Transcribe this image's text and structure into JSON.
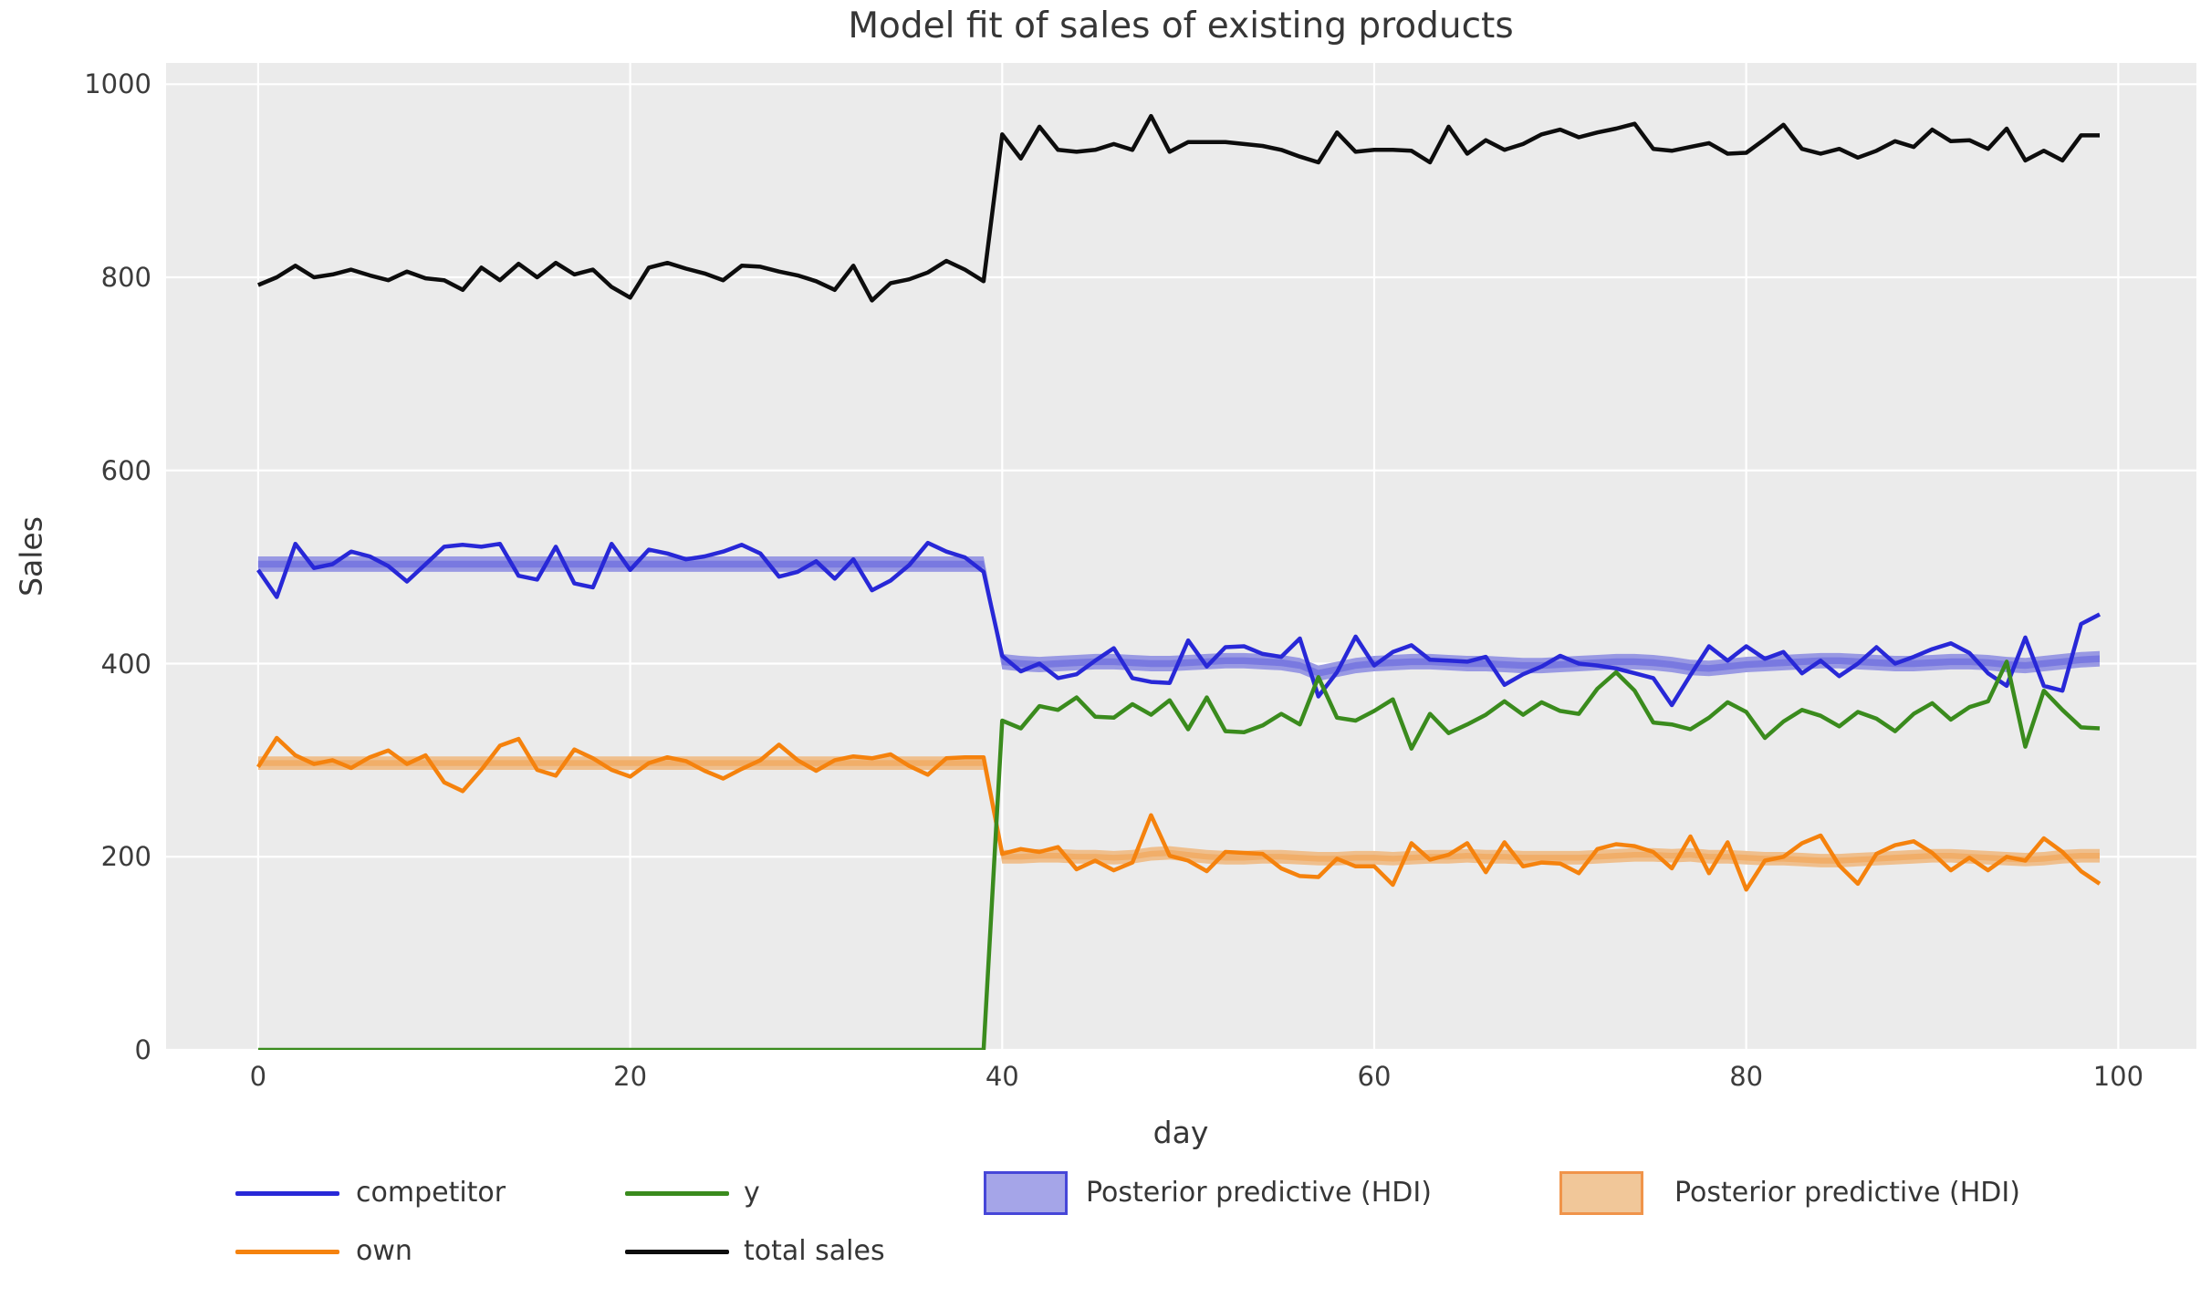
{
  "title": "Model fit of sales of existing products",
  "xlabel": "day",
  "ylabel": "Sales",
  "colors": {
    "figure_bg": "#ffffff",
    "plot_bg": "#ebebeb",
    "grid": "#ffffff",
    "text": "#363636",
    "tick_text": "#3c3c3c",
    "competitor": "#2828d7",
    "own": "#f5820d",
    "y_series": "#3a8b1d",
    "total": "#0d0d0d",
    "blue_band_outer": "#9999e3",
    "blue_band_inner": "#7979e0",
    "orange_band_outer": "#efbf8d",
    "orange_band_inner": "#f1ae69",
    "legend_blue_patch_fill": "#a5a5e8",
    "legend_blue_patch_border": "#4646d8",
    "legend_orange_patch_fill": "#f1c799",
    "legend_orange_patch_border": "#f0944a"
  },
  "legend": {
    "items": [
      {
        "type": "line",
        "color_key": "competitor",
        "label": "competitor",
        "col": 0,
        "row": 0
      },
      {
        "type": "line",
        "color_key": "own",
        "label": "own",
        "col": 0,
        "row": 1
      },
      {
        "type": "line",
        "color_key": "y_series",
        "label": "y",
        "col": 1,
        "row": 0
      },
      {
        "type": "line",
        "color_key": "total",
        "label": "total sales",
        "col": 1,
        "row": 1
      },
      {
        "type": "patch",
        "fill_key": "legend_blue_patch_fill",
        "border_key": "legend_blue_patch_border",
        "label": "Posterior predictive (HDI)",
        "col": 2,
        "row": 0
      },
      {
        "type": "patch",
        "fill_key": "legend_orange_patch_fill",
        "border_key": "legend_orange_patch_border",
        "label": "Posterior predictive (HDI)",
        "col": 3,
        "row": 0
      }
    ]
  },
  "chart_data": {
    "type": "line",
    "title": "Model fit of sales of existing products",
    "xlabel": "day",
    "ylabel": "Sales",
    "xlim": [
      -4.95,
      104.2
    ],
    "ylim": [
      0,
      1022
    ],
    "x_ticks": [
      0,
      20,
      40,
      60,
      80,
      100
    ],
    "y_ticks": [
      0,
      200,
      400,
      600,
      800,
      1000
    ],
    "grid": true,
    "legend_position": "bottom",
    "x": [
      0,
      1,
      2,
      3,
      4,
      5,
      6,
      7,
      8,
      9,
      10,
      11,
      12,
      13,
      14,
      15,
      16,
      17,
      18,
      19,
      20,
      21,
      22,
      23,
      24,
      25,
      26,
      27,
      28,
      29,
      30,
      31,
      32,
      33,
      34,
      35,
      36,
      37,
      38,
      39,
      40,
      41,
      42,
      43,
      44,
      45,
      46,
      47,
      48,
      49,
      50,
      51,
      52,
      53,
      54,
      55,
      56,
      57,
      58,
      59,
      60,
      61,
      62,
      63,
      64,
      65,
      66,
      67,
      68,
      69,
      70,
      71,
      72,
      73,
      74,
      75,
      76,
      77,
      78,
      79,
      80,
      81,
      82,
      83,
      84,
      85,
      86,
      87,
      88,
      89,
      90,
      91,
      92,
      93,
      94,
      95,
      96,
      97,
      98,
      99
    ],
    "series": [
      {
        "name": "competitor",
        "color_key": "competitor",
        "values": [
          497,
          469,
          524,
          499,
          503,
          516,
          511,
          501,
          485,
          503,
          521,
          523,
          521,
          524,
          491,
          487,
          521,
          483,
          479,
          524,
          497,
          518,
          514,
          508,
          511,
          516,
          523,
          514,
          490,
          495,
          506,
          488,
          508,
          476,
          486,
          502,
          525,
          516,
          510,
          495,
          408,
          392,
          400,
          385,
          389,
          403,
          416,
          385,
          381,
          380,
          424,
          397,
          417,
          418,
          410,
          407,
          426,
          366,
          391,
          428,
          398,
          412,
          419,
          404,
          403,
          402,
          407,
          378,
          389,
          397,
          408,
          400,
          398,
          395,
          390,
          385,
          357,
          388,
          418,
          403,
          418,
          405,
          412,
          390,
          403,
          387,
          400,
          417,
          400,
          407,
          415,
          421,
          411,
          390,
          377,
          427,
          377,
          372,
          441,
          451
        ]
      },
      {
        "name": "own",
        "color_key": "own",
        "values": [
          293,
          323,
          305,
          296,
          300,
          292,
          303,
          310,
          296,
          305,
          277,
          268,
          290,
          315,
          322,
          290,
          284,
          311,
          302,
          290,
          283,
          297,
          303,
          299,
          289,
          281,
          291,
          300,
          316,
          300,
          289,
          300,
          304,
          302,
          306,
          294,
          285,
          302,
          303,
          303,
          203,
          208,
          205,
          210,
          187,
          196,
          186,
          194,
          243,
          201,
          196,
          185,
          205,
          204,
          203,
          188,
          180,
          179,
          198,
          190,
          190,
          171,
          214,
          197,
          202,
          214,
          184,
          215,
          190,
          194,
          193,
          183,
          208,
          213,
          211,
          205,
          188,
          221,
          183,
          215,
          166,
          196,
          200,
          214,
          222,
          191,
          172,
          203,
          212,
          216,
          204,
          186,
          199,
          186,
          200,
          196,
          219,
          205,
          185,
          172
        ]
      },
      {
        "name": "y",
        "color_key": "y_series",
        "values": [
          0,
          0,
          0,
          0,
          0,
          0,
          0,
          0,
          0,
          0,
          0,
          0,
          0,
          0,
          0,
          0,
          0,
          0,
          0,
          0,
          0,
          0,
          0,
          0,
          0,
          0,
          0,
          0,
          0,
          0,
          0,
          0,
          0,
          0,
          0,
          0,
          0,
          0,
          0,
          0,
          341,
          333,
          356,
          352,
          365,
          345,
          344,
          358,
          347,
          362,
          332,
          365,
          330,
          329,
          336,
          348,
          337,
          386,
          344,
          341,
          351,
          363,
          312,
          348,
          328,
          337,
          347,
          361,
          347,
          360,
          351,
          348,
          374,
          391,
          372,
          339,
          337,
          332,
          344,
          360,
          350,
          323,
          340,
          352,
          346,
          335,
          350,
          343,
          330,
          348,
          359,
          342,
          355,
          361,
          402,
          314,
          372,
          352,
          334,
          333
        ]
      },
      {
        "name": "total sales",
        "color_key": "total",
        "values": [
          792,
          800,
          812,
          800,
          803,
          808,
          802,
          797,
          806,
          799,
          797,
          787,
          810,
          797,
          814,
          800,
          815,
          803,
          808,
          790,
          779,
          810,
          815,
          809,
          804,
          797,
          812,
          811,
          806,
          802,
          796,
          787,
          812,
          776,
          794,
          798,
          805,
          817,
          808,
          796,
          948,
          923,
          956,
          932,
          930,
          932,
          938,
          932,
          967,
          930,
          940,
          940,
          940,
          938,
          936,
          932,
          925,
          919,
          950,
          930,
          932,
          932,
          931,
          919,
          956,
          928,
          942,
          932,
          938,
          948,
          953,
          945,
          950,
          954,
          959,
          933,
          931,
          935,
          939,
          928,
          929,
          943,
          958,
          933,
          928,
          933,
          924,
          931,
          941,
          935,
          953,
          941,
          942,
          933,
          954,
          921,
          931,
          921,
          947,
          947
        ]
      }
    ],
    "bands": [
      {
        "name": "Posterior predictive (HDI)",
        "series": "competitor",
        "outer_color_key": "blue_band_outer",
        "inner_color_key": "blue_band_inner",
        "outer_halfwidth": 8,
        "inner_halfwidth": 3.5,
        "center": [
          503,
          503,
          503,
          503,
          503,
          503,
          503,
          503,
          503,
          503,
          503,
          503,
          503,
          503,
          503,
          503,
          503,
          503,
          503,
          503,
          503,
          503,
          503,
          503,
          503,
          503,
          503,
          503,
          503,
          503,
          503,
          503,
          503,
          503,
          503,
          503,
          503,
          503,
          503,
          503,
          402,
          400,
          399,
          400,
          401,
          402,
          402,
          401,
          400,
          400,
          401,
          402,
          403,
          403,
          402,
          401,
          398,
          390,
          394,
          398,
          400,
          401,
          402,
          402,
          401,
          400,
          400,
          399,
          398,
          398,
          399,
          400,
          401,
          402,
          402,
          401,
          399,
          396,
          395,
          397,
          399,
          400,
          401,
          402,
          403,
          403,
          402,
          401,
          400,
          400,
          401,
          402,
          402,
          401,
          399,
          398,
          400,
          402,
          404,
          405
        ]
      },
      {
        "name": "Posterior predictive (HDI)",
        "series": "own",
        "outer_color_key": "orange_band_outer",
        "inner_color_key": "orange_band_inner",
        "outer_halfwidth": 7,
        "inner_halfwidth": 3,
        "center": [
          297,
          297,
          297,
          297,
          297,
          297,
          297,
          297,
          297,
          297,
          297,
          297,
          297,
          297,
          297,
          297,
          297,
          297,
          297,
          297,
          297,
          297,
          297,
          297,
          297,
          297,
          297,
          297,
          297,
          297,
          297,
          297,
          297,
          297,
          297,
          297,
          297,
          297,
          297,
          297,
          200,
          200,
          201,
          201,
          200,
          200,
          199,
          200,
          203,
          204,
          202,
          200,
          199,
          199,
          200,
          200,
          199,
          198,
          198,
          199,
          199,
          198,
          199,
          200,
          200,
          201,
          200,
          200,
          199,
          199,
          199,
          199,
          200,
          201,
          202,
          202,
          201,
          202,
          200,
          200,
          199,
          198,
          198,
          197,
          196,
          196,
          197,
          198,
          199,
          200,
          201,
          201,
          200,
          199,
          198,
          197,
          198,
          200,
          201,
          201
        ]
      }
    ]
  }
}
